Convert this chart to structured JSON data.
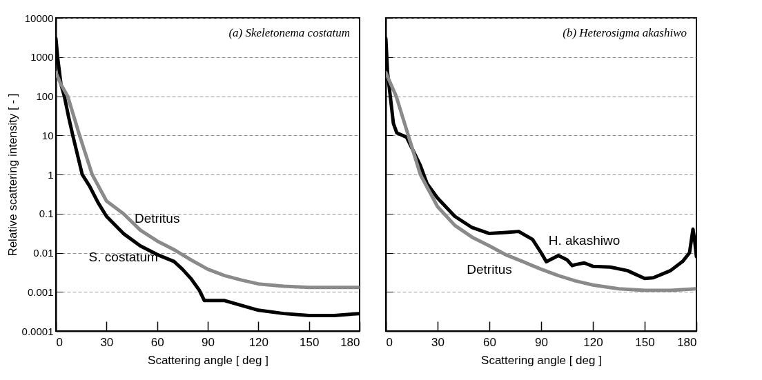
{
  "chart_data": [
    {
      "type": "line",
      "title": "(a) Skeletonema costatum",
      "xlabel": "Scattering angle [ deg ]",
      "ylabel": "Relative scattering intensity [ - ]",
      "xlim": [
        0,
        180
      ],
      "xticks": [
        0,
        30,
        60,
        90,
        120,
        150,
        180
      ],
      "ylim": [
        0.0001,
        10000
      ],
      "yticks": [
        0.0001,
        0.001,
        0.01,
        0.1,
        1,
        10,
        100,
        1000,
        10000
      ],
      "log": true,
      "grid": "y",
      "line_style": "solid",
      "series": [
        {
          "name": "S. costatum",
          "color": "#000000",
          "x": [
            0,
            1,
            3,
            5,
            7.5,
            10,
            15.6,
            20,
            25,
            30,
            40,
            50,
            60,
            70,
            75,
            80,
            85,
            88,
            95,
            100,
            110,
            120,
            135,
            150,
            165,
            180
          ],
          "values": [
            3000,
            1000,
            200,
            100,
            30,
            10,
            1,
            0.5,
            0.19,
            0.085,
            0.031,
            0.015,
            0.009,
            0.006,
            0.0038,
            0.0022,
            0.0011,
            0.0006,
            0.0006,
            0.0006,
            0.00045,
            0.00034,
            0.00028,
            0.00025,
            0.00025,
            0.00028
          ]
        },
        {
          "name": "Detritus",
          "color": "#8a8a8a",
          "x": [
            0,
            3,
            7,
            14,
            21.5,
            30,
            40,
            50,
            60,
            70,
            80,
            90,
            100,
            110,
            120,
            135,
            150,
            165,
            180
          ],
          "values": [
            400,
            200,
            100,
            10,
            1,
            0.21,
            0.1,
            0.038,
            0.02,
            0.012,
            0.0066,
            0.0038,
            0.0026,
            0.002,
            0.0016,
            0.0014,
            0.0013,
            0.0013,
            0.0013
          ]
        }
      ],
      "legend": false
    },
    {
      "type": "line",
      "title": "(b) Heterosigma akashiwo",
      "xlabel": "Scattering angle [ deg ]",
      "xlim": [
        0,
        180
      ],
      "xticks": [
        0,
        30,
        60,
        90,
        120,
        150,
        180
      ],
      "ylim": [
        0.0001,
        10000
      ],
      "yticks": [
        0.0001,
        0.001,
        0.01,
        0.1,
        1,
        10,
        100,
        1000,
        10000
      ],
      "log": true,
      "grid": "y",
      "line_style": "solid",
      "tick_labels": "x",
      "series": [
        {
          "name": "H. akashiwo",
          "color": "#000000",
          "x": [
            0,
            1,
            4.4,
            6.4,
            12,
            20,
            24,
            30,
            40,
            50,
            60,
            70,
            77,
            85,
            90,
            93,
            100,
            105,
            108,
            110,
            115,
            120,
            130,
            140,
            150,
            155,
            165,
            172,
            176,
            178,
            179,
            180
          ],
          "values": [
            3000,
            400,
            20,
            11.5,
            9,
            1.7,
            0.57,
            0.25,
            0.085,
            0.044,
            0.031,
            0.033,
            0.035,
            0.022,
            0.01,
            0.0059,
            0.0085,
            0.0066,
            0.0047,
            0.005,
            0.0055,
            0.0045,
            0.0043,
            0.0035,
            0.0022,
            0.0023,
            0.0035,
            0.006,
            0.01,
            0.04,
            0.02,
            0.008
          ]
        },
        {
          "name": "Detritus",
          "color": "#8a8a8a",
          "x": [
            0,
            3,
            6,
            13,
            20,
            30,
            40,
            50,
            60,
            70,
            80,
            90,
            100,
            110,
            120,
            135,
            150,
            165,
            180
          ],
          "values": [
            400,
            200,
            100,
            10,
            1,
            0.15,
            0.05,
            0.025,
            0.015,
            0.0087,
            0.0058,
            0.0038,
            0.0026,
            0.0019,
            0.0015,
            0.0012,
            0.0011,
            0.0011,
            0.0012
          ]
        }
      ],
      "legend": false
    }
  ]
}
